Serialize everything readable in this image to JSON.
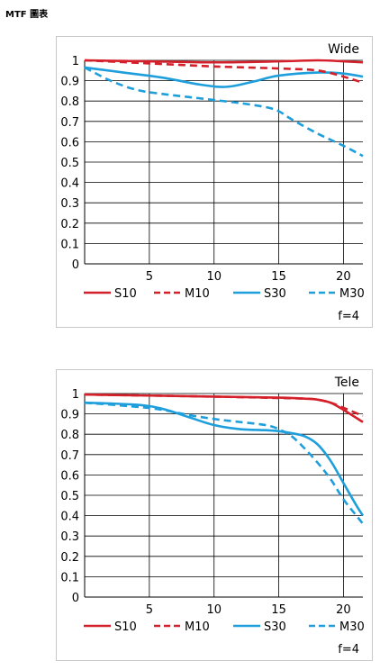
{
  "page": {
    "title": "MTF 圖表"
  },
  "colors": {
    "red": "#d4202a",
    "blue": "#1e9fdc",
    "grid": "#000000"
  },
  "chart_data": [
    {
      "type": "line",
      "title": "Wide",
      "footnote": "f=4",
      "xlabel": "",
      "ylabel": "",
      "xlim": [
        0,
        21.5
      ],
      "ylim": [
        0,
        1
      ],
      "xticks": [
        5,
        10,
        15,
        20
      ],
      "yticks": [
        0,
        0.1,
        0.2,
        0.3,
        0.4,
        0.5,
        0.6,
        0.7,
        0.8,
        0.9,
        1
      ],
      "ytick_labels": [
        "0",
        "0.1",
        "0.2",
        "0.3",
        "0.4",
        "0.5",
        "0.6",
        "0.7",
        "0.8",
        "0.9",
        "1"
      ],
      "grid": true,
      "legend": "bottom",
      "series": [
        {
          "name": "S10",
          "color": "red",
          "dash": false,
          "x": [
            0,
            5,
            10,
            15,
            18,
            20,
            21.5
          ],
          "y": [
            1.0,
            0.995,
            0.99,
            0.995,
            1.0,
            0.995,
            0.99
          ]
        },
        {
          "name": "M10",
          "color": "red",
          "dash": true,
          "x": [
            0,
            5,
            10,
            15,
            18,
            20,
            21.5
          ],
          "y": [
            1.0,
            0.985,
            0.97,
            0.96,
            0.95,
            0.92,
            0.89
          ]
        },
        {
          "name": "S30",
          "color": "blue",
          "dash": false,
          "x": [
            0,
            3,
            6,
            9,
            11,
            13,
            15,
            18,
            20,
            21.5
          ],
          "y": [
            0.965,
            0.94,
            0.915,
            0.88,
            0.87,
            0.895,
            0.925,
            0.94,
            0.935,
            0.92
          ]
        },
        {
          "name": "M30",
          "color": "blue",
          "dash": true,
          "x": [
            0,
            2,
            4,
            6,
            8,
            10,
            12,
            14,
            15,
            16,
            18,
            20,
            21.5
          ],
          "y": [
            0.965,
            0.9,
            0.855,
            0.835,
            0.82,
            0.805,
            0.79,
            0.77,
            0.75,
            0.71,
            0.64,
            0.58,
            0.53
          ]
        }
      ]
    },
    {
      "type": "line",
      "title": "Tele",
      "footnote": "f=4",
      "xlabel": "",
      "ylabel": "",
      "xlim": [
        0,
        21.5
      ],
      "ylim": [
        0,
        1
      ],
      "xticks": [
        5,
        10,
        15,
        20
      ],
      "yticks": [
        0,
        0.1,
        0.2,
        0.3,
        0.4,
        0.5,
        0.6,
        0.7,
        0.8,
        0.9,
        1
      ],
      "ytick_labels": [
        "0",
        "0.1",
        "0.2",
        "0.3",
        "0.4",
        "0.5",
        "0.6",
        "0.7",
        "0.8",
        "0.9",
        "1"
      ],
      "grid": true,
      "legend": "bottom",
      "series": [
        {
          "name": "S10",
          "color": "red",
          "dash": false,
          "x": [
            0,
            5,
            10,
            15,
            17,
            18,
            19,
            20,
            21.5
          ],
          "y": [
            0.995,
            0.99,
            0.985,
            0.98,
            0.975,
            0.97,
            0.955,
            0.92,
            0.86
          ]
        },
        {
          "name": "M10",
          "color": "red",
          "dash": true,
          "x": [
            0,
            5,
            10,
            15,
            17,
            18,
            19,
            20,
            21.5
          ],
          "y": [
            0.995,
            0.99,
            0.985,
            0.978,
            0.975,
            0.97,
            0.955,
            0.93,
            0.89
          ]
        },
        {
          "name": "S30",
          "color": "blue",
          "dash": false,
          "x": [
            0,
            4,
            6,
            8,
            10,
            12,
            14,
            15,
            16,
            17,
            18,
            19,
            20,
            21,
            21.5
          ],
          "y": [
            0.955,
            0.945,
            0.925,
            0.885,
            0.845,
            0.825,
            0.82,
            0.815,
            0.805,
            0.79,
            0.75,
            0.67,
            0.56,
            0.45,
            0.4
          ]
        },
        {
          "name": "M30",
          "color": "blue",
          "dash": true,
          "x": [
            0,
            4,
            6,
            8,
            10,
            12,
            14,
            15,
            16,
            17,
            18,
            19,
            20,
            21,
            21.5
          ],
          "y": [
            0.955,
            0.935,
            0.92,
            0.895,
            0.875,
            0.86,
            0.845,
            0.825,
            0.79,
            0.73,
            0.66,
            0.58,
            0.48,
            0.4,
            0.36
          ]
        }
      ]
    }
  ]
}
